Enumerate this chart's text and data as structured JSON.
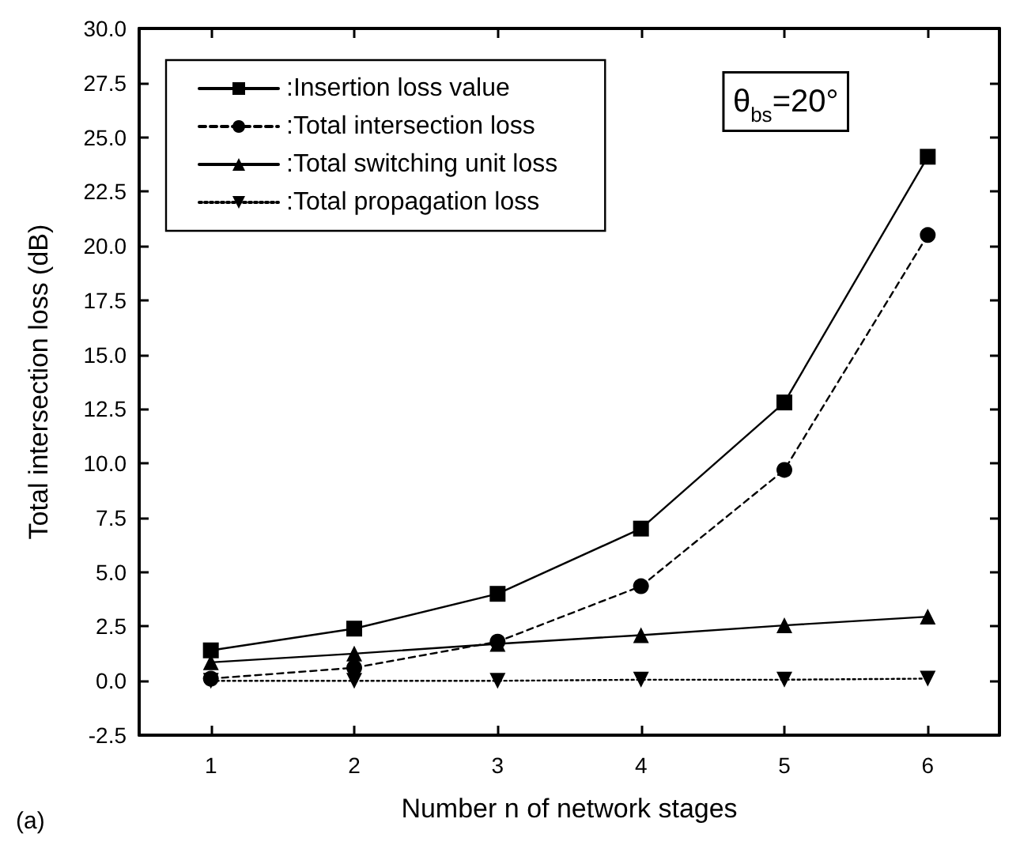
{
  "chart_data": {
    "type": "line",
    "xlabel": "Number n of network stages",
    "ylabel": "Total intersection loss (dB)",
    "x": [
      1,
      2,
      3,
      4,
      5,
      6
    ],
    "xlim": [
      0.5,
      6.5
    ],
    "xticks": [
      1,
      2,
      3,
      4,
      5,
      6
    ],
    "ylim": [
      -2.5,
      30
    ],
    "yticks": [
      {
        "value": -2.5,
        "label": "-2.5"
      },
      {
        "value": 0,
        "label": "0.0"
      },
      {
        "value": 2.5,
        "label": "2.5"
      },
      {
        "value": 5,
        "label": "5.0"
      },
      {
        "value": 7.5,
        "label": "7.5"
      },
      {
        "value": 10,
        "label": "10.0"
      },
      {
        "value": 12.5,
        "label": "12.5"
      },
      {
        "value": 15,
        "label": "15.0"
      },
      {
        "value": 17.5,
        "label": "17.5"
      },
      {
        "value": 20,
        "label": "20.0"
      },
      {
        "value": 22.5,
        "label": "22.5"
      },
      {
        "value": 25,
        "label": "25.0"
      },
      {
        "value": 27.5,
        "label": "27.5"
      },
      {
        "value": 30,
        "label": "30.0"
      }
    ],
    "series": [
      {
        "name": ":Insertion loss value",
        "color": "#000000",
        "marker": "square",
        "line_style": "solid",
        "values": [
          1.4,
          2.4,
          4.0,
          7.0,
          12.8,
          24.1
        ]
      },
      {
        "name": ":Total intersection loss",
        "color": "#000000",
        "marker": "circle",
        "line_style": "dashed",
        "values": [
          0.1,
          0.6,
          1.8,
          4.35,
          9.7,
          20.5
        ]
      },
      {
        "name": ":Total switching unit loss",
        "color": "#000000",
        "marker": "triangle",
        "line_style": "solid",
        "values": [
          0.85,
          1.25,
          1.7,
          2.1,
          2.55,
          2.95
        ]
      },
      {
        "name": ":Total propagation loss",
        "color": "#000000",
        "marker": "triangle-down",
        "line_style": "dotted",
        "values": [
          0,
          0,
          0,
          0.05,
          0.05,
          0.1
        ]
      }
    ],
    "legend": "top left",
    "grid": false,
    "annotations": [
      "θ$_{bs}$=20°",
      "(a)"
    ]
  }
}
